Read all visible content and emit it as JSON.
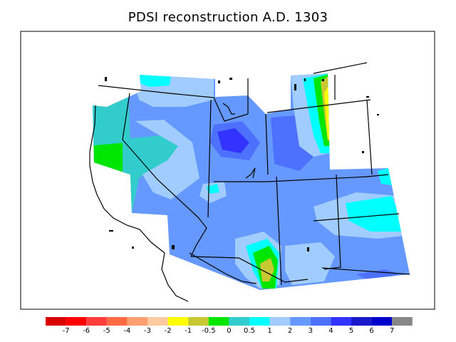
{
  "title": "PDSI reconstruction A.D. 1303",
  "legend": {
    "colors": [
      "#d90000",
      "#ff0000",
      "#ff3d3d",
      "#ff6a45",
      "#ff9e70",
      "#ffc9a0",
      "#ffff00",
      "#c8c832",
      "#00e600",
      "#33cccc",
      "#00ffff",
      "#a0ccff",
      "#6699ff",
      "#4d70ff",
      "#3333ff",
      "#1a1acc",
      "#0000cc",
      "#888888"
    ],
    "labels": [
      "-7",
      "-6",
      "-5",
      "-4",
      "-3",
      "-2",
      "-1",
      "-0.5",
      "0",
      "0.5",
      "1",
      "2",
      "3",
      "4",
      "5",
      "6",
      "7"
    ]
  },
  "palette": {
    "bg": "#6699ff",
    "dark_blue": "#3333ff",
    "mid_blue": "#4d70ff",
    "light_blue": "#a0ccff",
    "cyan": "#00ffff",
    "teal": "#33cccc",
    "green": "#00e600",
    "yellow": "#ffff00",
    "olive": "#c8c832"
  }
}
